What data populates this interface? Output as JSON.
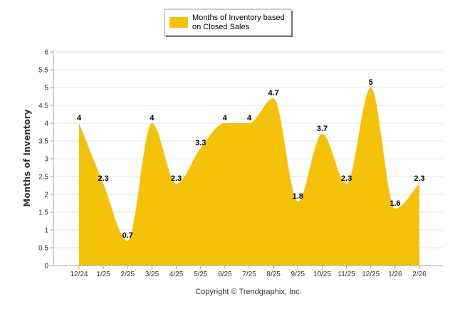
{
  "chart_data": {
    "type": "area",
    "title": "",
    "xlabel": "",
    "ylabel": "Months of Inventory",
    "ylim": [
      0,
      6
    ],
    "ytick_step": 0.5,
    "yticks": [
      "0",
      "0.5",
      "1",
      "1.5",
      "2",
      "2.5",
      "3",
      "3.5",
      "4",
      "4.5",
      "5",
      "5.5",
      "6"
    ],
    "categories": [
      "12/24",
      "1/25",
      "2/25",
      "3/25",
      "4/25",
      "5/25",
      "6/25",
      "7/25",
      "8/25",
      "9/25",
      "10/25",
      "11/25",
      "12/25",
      "1/26",
      "2/26"
    ],
    "series": [
      {
        "name": "Months of Inventory based on Closed Sales",
        "values": [
          4,
          2.3,
          0.7,
          4,
          2.3,
          3.3,
          4,
          4,
          4.7,
          1.8,
          3.7,
          2.3,
          5,
          1.6,
          2.3
        ],
        "labels": [
          "4",
          "2.3",
          "0.7",
          "4",
          "2.3",
          "3.3",
          "4",
          "4",
          "4.7",
          "1.8",
          "3.7",
          "2.3",
          "5",
          "1.6",
          "2.3"
        ],
        "color": "#F5C20A"
      }
    ],
    "legend": {
      "line1": "Months of Inventory based",
      "line2": "on Closed Sales",
      "position": "top-center"
    },
    "grid": true
  },
  "footer": {
    "copyright": "Copyright © Trendgraphix, Inc."
  },
  "colors": {
    "fill": "#F5C20A",
    "grid": "#e4e4e4",
    "axis": "#aaaaaa"
  }
}
